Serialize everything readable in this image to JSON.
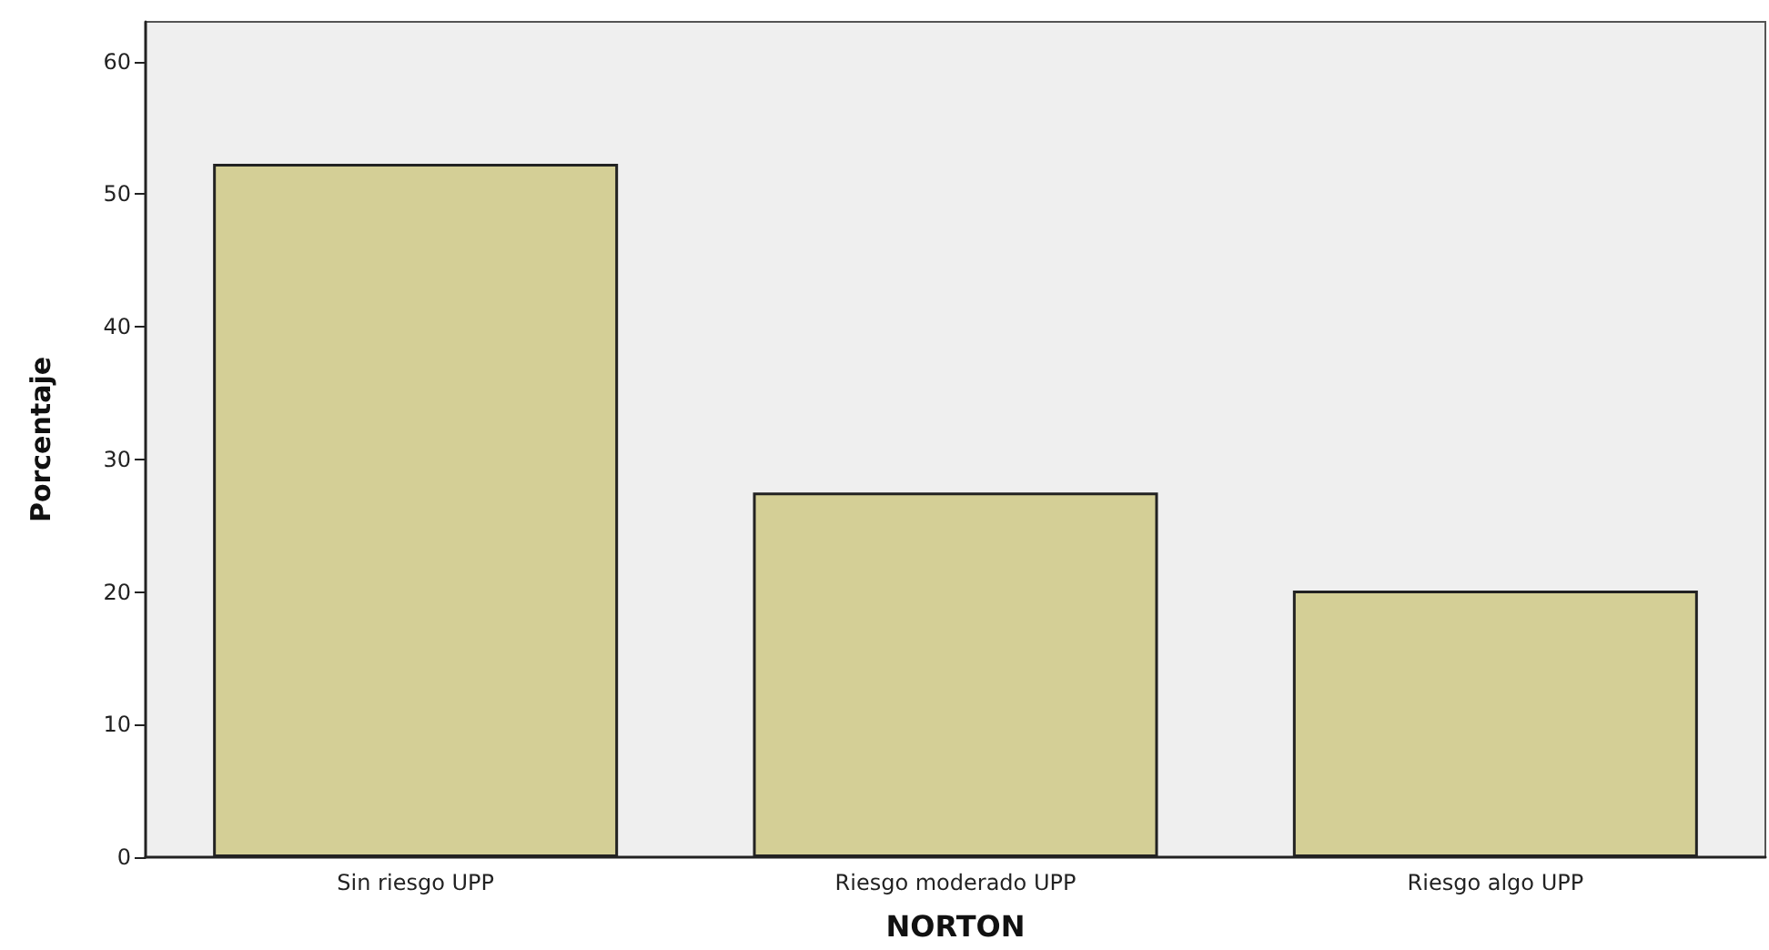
{
  "chart_data": {
    "type": "bar",
    "xlabel": "NORTON",
    "ylabel": "Porcentaje",
    "categories": [
      "Sin riesgo UPP",
      "Riesgo moderado UPP",
      "Riesgo algo UPP"
    ],
    "values": [
      52.3,
      27.5,
      20.1
    ],
    "color": "#d4cf96",
    "ylim": [
      0,
      63
    ],
    "yticks": [
      0,
      10,
      20,
      30,
      40,
      50,
      60
    ],
    "grid": false
  }
}
